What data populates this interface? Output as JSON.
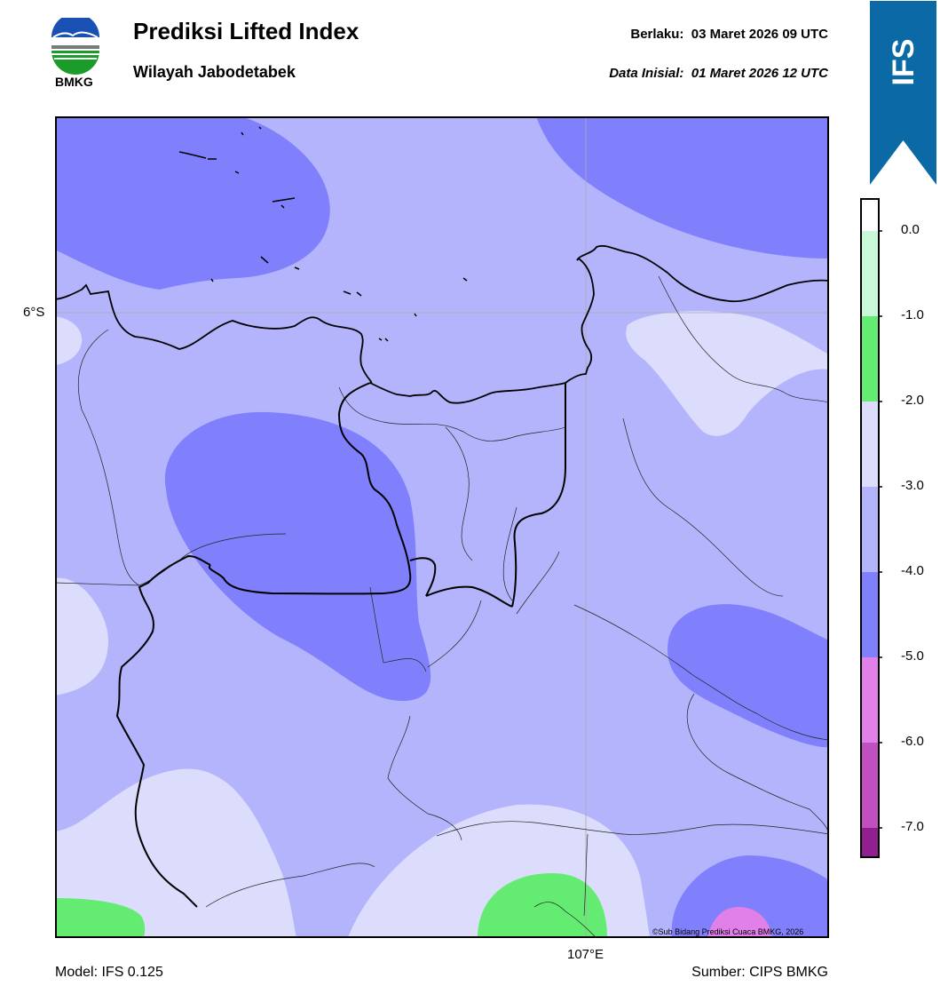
{
  "header": {
    "logo_text": "BMKG",
    "title": "Prediksi Lifted Index",
    "subtitle": "Wilayah Jabodetabek",
    "valid_label": "Berlaku:",
    "valid_value": "03 Maret 2026 09 UTC",
    "init_label": "Data Inisial:",
    "init_value": "01 Maret 2026 12 UTC"
  },
  "map": {
    "lat_label": "6°S",
    "lon_label": "107°E",
    "copyright": "©Sub Bidang Prediksi Cuaca BMKG, 2026"
  },
  "footer": {
    "model": "Model: IFS 0.125",
    "source": "Sumber: CIPS BMKG"
  },
  "badge": {
    "text": "IFS"
  },
  "colorbar": {
    "ticks": [
      "0.0",
      "-1.0",
      "-2.0",
      "-3.0",
      "-4.0",
      "-5.0",
      "-6.0",
      "-7.0"
    ],
    "colors": {
      "gt0": "#ffffff",
      "0_to_-1": "#c8f8d8",
      "-1_to_-2": "#64ec72",
      "-2_to_-3": "#dcdcfc",
      "-3_to_-4": "#b4b4fc",
      "-4_to_-5": "#8080fc",
      "-5_to_-6": "#e080e8",
      "-6_to_-7": "#c050c0",
      "lt-7": "#902090"
    }
  },
  "colors": {
    "badge": "#0b6aa6",
    "frame": "#000000"
  }
}
